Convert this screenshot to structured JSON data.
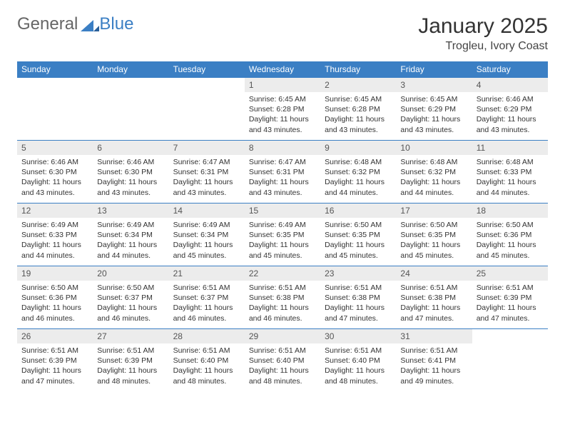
{
  "logo": {
    "part1": "General",
    "part2": "Blue"
  },
  "title": "January 2025",
  "location": "Trogleu, Ivory Coast",
  "colors": {
    "header_bg": "#3b7fc4",
    "header_fg": "#ffffff",
    "daynum_bg": "#ececec",
    "row_border": "#3b7fc4",
    "background": "#ffffff"
  },
  "typography": {
    "title_fontsize": 30,
    "location_fontsize": 16,
    "dayhead_fontsize": 12,
    "body_fontsize": 10.5
  },
  "dayHeaders": [
    "Sunday",
    "Monday",
    "Tuesday",
    "Wednesday",
    "Thursday",
    "Friday",
    "Saturday"
  ],
  "startOffset": 3,
  "days": [
    {
      "n": 1,
      "sr": "6:45 AM",
      "ss": "6:28 PM",
      "dl": "11 hours and 43 minutes."
    },
    {
      "n": 2,
      "sr": "6:45 AM",
      "ss": "6:28 PM",
      "dl": "11 hours and 43 minutes."
    },
    {
      "n": 3,
      "sr": "6:45 AM",
      "ss": "6:29 PM",
      "dl": "11 hours and 43 minutes."
    },
    {
      "n": 4,
      "sr": "6:46 AM",
      "ss": "6:29 PM",
      "dl": "11 hours and 43 minutes."
    },
    {
      "n": 5,
      "sr": "6:46 AM",
      "ss": "6:30 PM",
      "dl": "11 hours and 43 minutes."
    },
    {
      "n": 6,
      "sr": "6:46 AM",
      "ss": "6:30 PM",
      "dl": "11 hours and 43 minutes."
    },
    {
      "n": 7,
      "sr": "6:47 AM",
      "ss": "6:31 PM",
      "dl": "11 hours and 43 minutes."
    },
    {
      "n": 8,
      "sr": "6:47 AM",
      "ss": "6:31 PM",
      "dl": "11 hours and 43 minutes."
    },
    {
      "n": 9,
      "sr": "6:48 AM",
      "ss": "6:32 PM",
      "dl": "11 hours and 44 minutes."
    },
    {
      "n": 10,
      "sr": "6:48 AM",
      "ss": "6:32 PM",
      "dl": "11 hours and 44 minutes."
    },
    {
      "n": 11,
      "sr": "6:48 AM",
      "ss": "6:33 PM",
      "dl": "11 hours and 44 minutes."
    },
    {
      "n": 12,
      "sr": "6:49 AM",
      "ss": "6:33 PM",
      "dl": "11 hours and 44 minutes."
    },
    {
      "n": 13,
      "sr": "6:49 AM",
      "ss": "6:34 PM",
      "dl": "11 hours and 44 minutes."
    },
    {
      "n": 14,
      "sr": "6:49 AM",
      "ss": "6:34 PM",
      "dl": "11 hours and 45 minutes."
    },
    {
      "n": 15,
      "sr": "6:49 AM",
      "ss": "6:35 PM",
      "dl": "11 hours and 45 minutes."
    },
    {
      "n": 16,
      "sr": "6:50 AM",
      "ss": "6:35 PM",
      "dl": "11 hours and 45 minutes."
    },
    {
      "n": 17,
      "sr": "6:50 AM",
      "ss": "6:35 PM",
      "dl": "11 hours and 45 minutes."
    },
    {
      "n": 18,
      "sr": "6:50 AM",
      "ss": "6:36 PM",
      "dl": "11 hours and 45 minutes."
    },
    {
      "n": 19,
      "sr": "6:50 AM",
      "ss": "6:36 PM",
      "dl": "11 hours and 46 minutes."
    },
    {
      "n": 20,
      "sr": "6:50 AM",
      "ss": "6:37 PM",
      "dl": "11 hours and 46 minutes."
    },
    {
      "n": 21,
      "sr": "6:51 AM",
      "ss": "6:37 PM",
      "dl": "11 hours and 46 minutes."
    },
    {
      "n": 22,
      "sr": "6:51 AM",
      "ss": "6:38 PM",
      "dl": "11 hours and 46 minutes."
    },
    {
      "n": 23,
      "sr": "6:51 AM",
      "ss": "6:38 PM",
      "dl": "11 hours and 47 minutes."
    },
    {
      "n": 24,
      "sr": "6:51 AM",
      "ss": "6:38 PM",
      "dl": "11 hours and 47 minutes."
    },
    {
      "n": 25,
      "sr": "6:51 AM",
      "ss": "6:39 PM",
      "dl": "11 hours and 47 minutes."
    },
    {
      "n": 26,
      "sr": "6:51 AM",
      "ss": "6:39 PM",
      "dl": "11 hours and 47 minutes."
    },
    {
      "n": 27,
      "sr": "6:51 AM",
      "ss": "6:39 PM",
      "dl": "11 hours and 48 minutes."
    },
    {
      "n": 28,
      "sr": "6:51 AM",
      "ss": "6:40 PM",
      "dl": "11 hours and 48 minutes."
    },
    {
      "n": 29,
      "sr": "6:51 AM",
      "ss": "6:40 PM",
      "dl": "11 hours and 48 minutes."
    },
    {
      "n": 30,
      "sr": "6:51 AM",
      "ss": "6:40 PM",
      "dl": "11 hours and 48 minutes."
    },
    {
      "n": 31,
      "sr": "6:51 AM",
      "ss": "6:41 PM",
      "dl": "11 hours and 49 minutes."
    }
  ],
  "labels": {
    "sunrise": "Sunrise:",
    "sunset": "Sunset:",
    "daylight": "Daylight:"
  }
}
